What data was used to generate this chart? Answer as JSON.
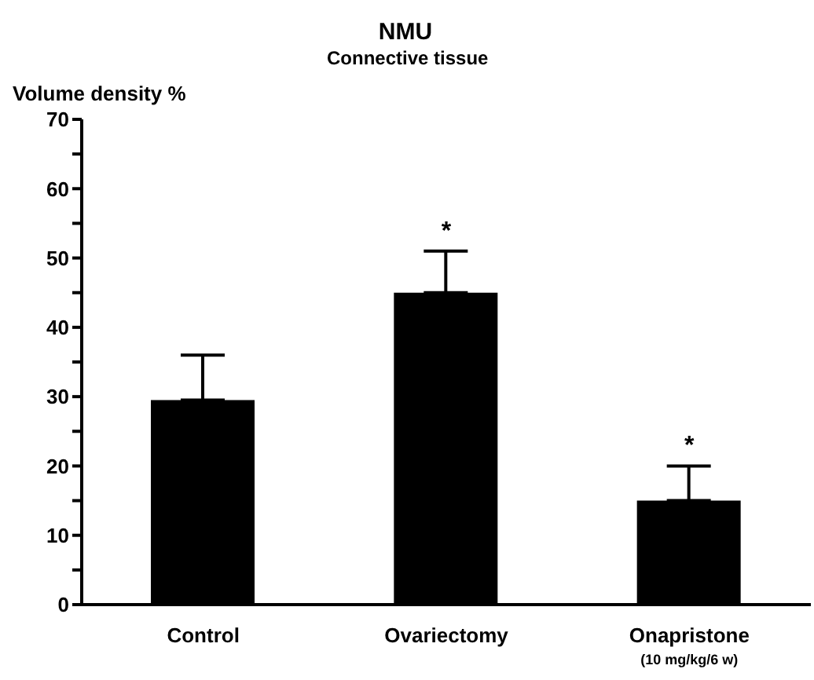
{
  "chart_data": {
    "type": "bar",
    "title": "NMU",
    "subtitle": "Connective tissue",
    "ylabel": "Volume density %",
    "categories": [
      "Control",
      "Ovariectomy",
      "Onapristone\n(10 mg/kg/6 w)"
    ],
    "values": [
      29.5,
      45,
      15
    ],
    "errors": [
      [
        29.5,
        36
      ],
      [
        45,
        51
      ],
      [
        15,
        20
      ]
    ],
    "color": "#000000",
    "ylim": [
      0,
      70
    ],
    "yticks": [
      0,
      {
        "value": 5,
        "label": null
      },
      10,
      {
        "value": 15,
        "label": null
      },
      20,
      {
        "value": 25,
        "label": null
      },
      30,
      {
        "value": 35,
        "label": null
      },
      40,
      {
        "value": 45,
        "label": null
      },
      50,
      {
        "value": 55,
        "label": null
      },
      60,
      {
        "value": 65,
        "label": null
      },
      70
    ],
    "annotations": [
      {
        "text": "*",
        "x": "Ovariectomy",
        "y": 51
      },
      {
        "text": "*",
        "x": "Onapristone\n(10 mg/kg/6 w)",
        "y": 20
      }
    ],
    "grid": false,
    "legend": false
  }
}
